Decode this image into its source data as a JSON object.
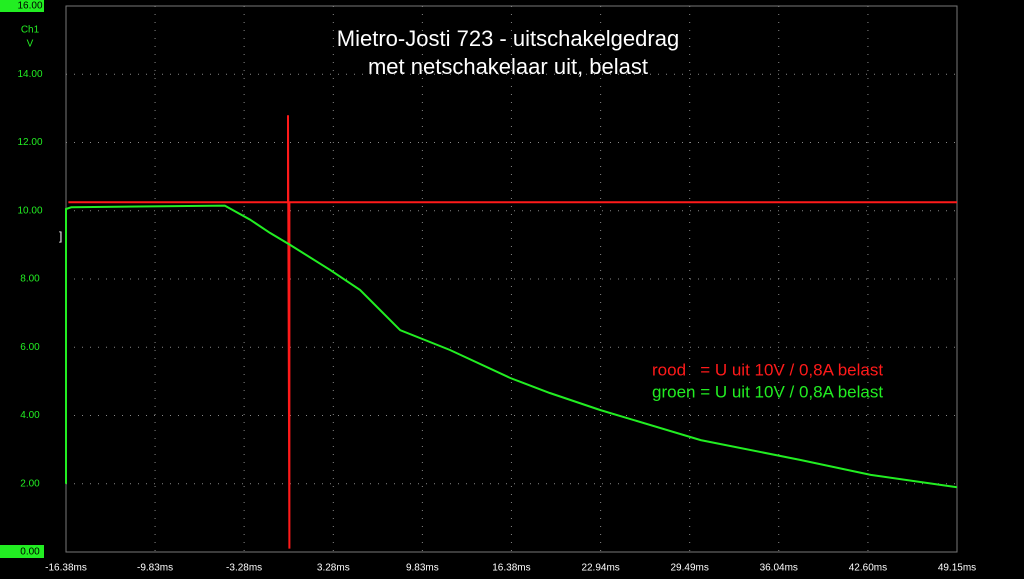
{
  "chart_data": {
    "type": "line",
    "title": [
      "Mietro-Josti 723 - uitschakelgedrag",
      "met netschakelaar uit, belast"
    ],
    "y_axis_title": "Ch1",
    "y_unit": "V",
    "x": [],
    "series": [
      {
        "name": "rood   = U uit 10V / 0,8A belast",
        "color": "#ff1a1a",
        "x": [
          -16.2,
          -0.05,
          -0.05,
          0.05,
          0.05,
          49.15
        ],
        "values": [
          10.25,
          10.25,
          12.8,
          0.1,
          10.25,
          10.25
        ]
      },
      {
        "name": "groen = U uit 10V / 0,8A belast",
        "color": "#22ee22",
        "x": [
          -16.38,
          -16.38,
          -16.0,
          -4.7,
          -2.85,
          -1.38,
          0.1,
          3.03,
          5.24,
          8.2,
          11.86,
          16.3,
          19.2,
          22.9,
          30.3,
          37.6,
          42.8,
          49.15
        ],
        "values": [
          2.0,
          10.05,
          10.1,
          10.15,
          9.74,
          9.35,
          9.0,
          8.27,
          7.68,
          6.5,
          5.92,
          5.1,
          4.66,
          4.16,
          3.28,
          2.7,
          2.26,
          1.9
        ]
      }
    ],
    "xlim": [
      -16.38,
      49.15
    ],
    "xticks": [
      {
        "value": -16.38,
        "label": "-16.38ms"
      },
      {
        "value": -9.83,
        "label": "-9.83ms"
      },
      {
        "value": -3.28,
        "label": "-3.28ms"
      },
      {
        "value": 3.28,
        "label": "3.28ms"
      },
      {
        "value": 9.83,
        "label": "9.83ms"
      },
      {
        "value": 16.38,
        "label": "16.38ms"
      },
      {
        "value": 22.94,
        "label": "22.94ms"
      },
      {
        "value": 29.49,
        "label": "29.49ms"
      },
      {
        "value": 36.04,
        "label": "36.04ms"
      },
      {
        "value": 42.6,
        "label": "42.60ms"
      },
      {
        "value": 49.15,
        "label": "49.15ms"
      }
    ],
    "ylim": [
      0,
      16
    ],
    "yticks": [
      {
        "value": 0,
        "label": "0.00"
      },
      {
        "value": 2,
        "label": "2.00"
      },
      {
        "value": 4,
        "label": "4.00"
      },
      {
        "value": 6,
        "label": "6.00"
      },
      {
        "value": 8,
        "label": "8.00"
      },
      {
        "value": 10,
        "label": "10.00"
      },
      {
        "value": 12,
        "label": "12.00"
      },
      {
        "value": 14,
        "label": "14.00"
      },
      {
        "value": 16,
        "label": "16.00"
      }
    ],
    "grid": true
  }
}
